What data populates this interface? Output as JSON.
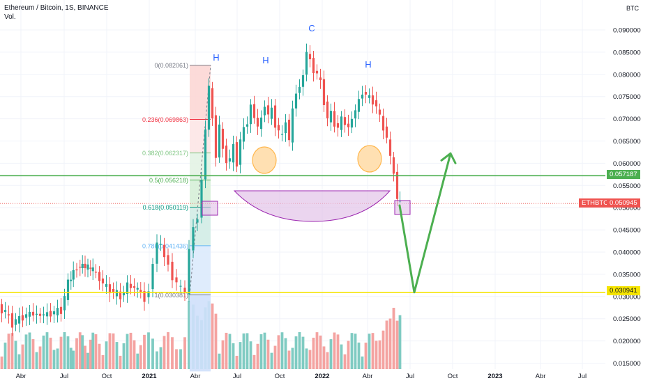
{
  "header": {
    "title": "Ethereum / Bitcoin, 1S, BINANCE",
    "volume_label": "Vol."
  },
  "currency_label": "BTC",
  "symbol_tag": "ETHBTC",
  "colors": {
    "up": "#26a69a",
    "down": "#ef5350",
    "vol_up": "#7fcbc2",
    "vol_down": "#f4a3a1",
    "green_line": "#4caf50",
    "yellow_line": "#f5e400",
    "fib_range": "#26a69a",
    "purple": "#9c27b0",
    "orange": "#ffb74d",
    "annotation_blue": "#2962ff"
  },
  "chart_data": {
    "type": "candlestick",
    "title": "Ethereum / Bitcoin, 1S, BINANCE",
    "y_axis": {
      "label": "BTC",
      "ticks": [
        "0.090000",
        "0.085000",
        "0.080000",
        "0.075000",
        "0.070000",
        "0.065000",
        "0.060000",
        "0.055000",
        "0.050000",
        "0.045000",
        "0.040000",
        "0.035000",
        "0.030000",
        "0.025000",
        "0.020000",
        "0.015000"
      ],
      "range": [
        0.0133,
        0.0935
      ]
    },
    "x_axis": {
      "ticks": [
        "Abr",
        "Jul",
        "Oct",
        "2021",
        "Abr",
        "Jul",
        "Oct",
        "2022",
        "Abr",
        "Jul",
        "Oct",
        "2023",
        "Abr",
        "Jul"
      ]
    },
    "ohlc_weekly_close_path": [
      {
        "segment": "2020 Q1-Q2",
        "from": 0.0252,
        "to": 0.0245
      },
      {
        "segment": "2020 Q3 peak",
        "value": 0.0375
      },
      {
        "segment": "2021 start",
        "value": 0.0315
      },
      {
        "segment": "2021 Feb high",
        "value": 0.0433
      },
      {
        "segment": "2021 May high",
        "value": 0.082
      },
      {
        "segment": "2021 Dec high",
        "value": 0.088
      },
      {
        "segment": "2022 Apr",
        "value": 0.0765
      },
      {
        "segment": "latest",
        "value": 0.050945
      }
    ],
    "fibonacci": [
      {
        "ratio": "0",
        "value": "0.082061",
        "label": "0(0.082061)",
        "color": "#787b86"
      },
      {
        "ratio": "0.236",
        "value": "0.069863",
        "label": "0.236(0.069863)",
        "color": "#f23645"
      },
      {
        "ratio": "0.382",
        "value": "0.062317",
        "label": "0.382(0.062317)",
        "color": "#81c784"
      },
      {
        "ratio": "0.5",
        "value": "0.056218",
        "label": "0.5(0.056218)",
        "color": "#4caf50"
      },
      {
        "ratio": "0.618",
        "value": "0.050119",
        "label": "0.618(0.050119)",
        "color": "#089981"
      },
      {
        "ratio": "0.786",
        "value": "0.041436",
        "label": "0.786(0.041436)",
        "color": "#64b5f6"
      },
      {
        "ratio": "1",
        "value": "0.030381",
        "label": "1(0.030381)",
        "color": "#787b86"
      }
    ],
    "horizontal_levels": [
      {
        "value": 0.057187,
        "label": "0.057187",
        "color": "#4caf50"
      },
      {
        "value": 0.030941,
        "label": "0.030941",
        "color": "#f5e400"
      }
    ],
    "last_price": {
      "value": 0.050945,
      "label": "0.050945"
    },
    "annotations": [
      "H",
      "H",
      "C",
      "H"
    ],
    "projection": {
      "from": 0.0505,
      "low": 0.030941,
      "target": 0.0622
    }
  }
}
